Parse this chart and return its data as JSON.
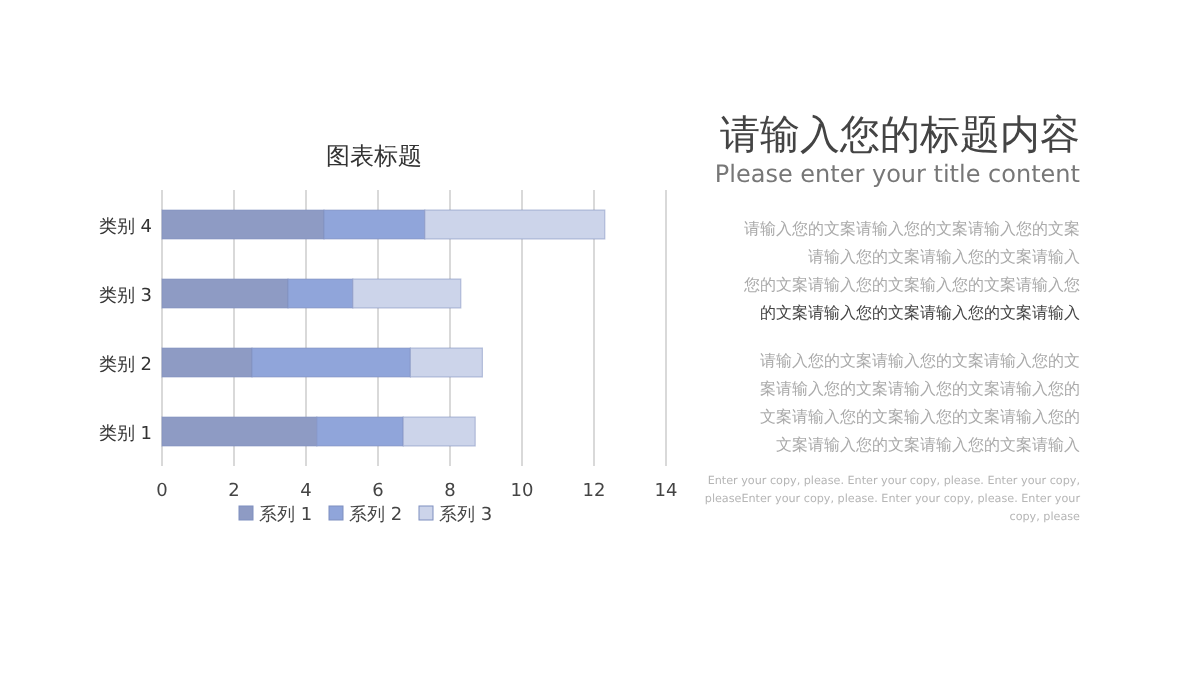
{
  "chart_data": {
    "type": "bar",
    "orientation": "horizontal",
    "stacked": true,
    "title": "图表标题",
    "categories": [
      "类别 4",
      "类别 3",
      "类别 2",
      "类别 1"
    ],
    "series": [
      {
        "name": "系列 1",
        "color": "#8e9bc4",
        "values": [
          4.5,
          3.5,
          2.5,
          4.3
        ]
      },
      {
        "name": "系列 2",
        "color": "#90a5da",
        "values": [
          2.8,
          1.8,
          4.4,
          2.4
        ]
      },
      {
        "name": "系列 3",
        "color": "#ccd4ea",
        "values": [
          5,
          3,
          2,
          2
        ]
      }
    ],
    "xlim": [
      0,
      14
    ],
    "xticks": [
      0,
      2,
      4,
      6,
      8,
      10,
      12,
      14
    ],
    "grid": "x",
    "legend": "bottom",
    "subtitle": "请输入您的标题内容",
    "annotations": [
      "Please enter your title content",
      "请输入您的文案请输入您的文案请输入您的文案",
      "请输入您的文案请输入您的文案请输入",
      "您的文案请输入您的文案输入您的文案请输入您",
      "的文案请输入您的文案请输入您的文案请输入",
      "请输入您的文案请输入您的文案请输入您的文",
      "案请输入您的文案请输入您的文案请输入您的",
      "文案请输入您的文案输入您的文案请输入您的",
      "文案请输入您的文案请输入您的文案请输入",
      "Enter your copy, please. Enter your copy, please. Enter your copy,",
      "pleaseEnter your copy, please. Enter your copy, please. Enter your",
      "copy, please"
    ]
  }
}
